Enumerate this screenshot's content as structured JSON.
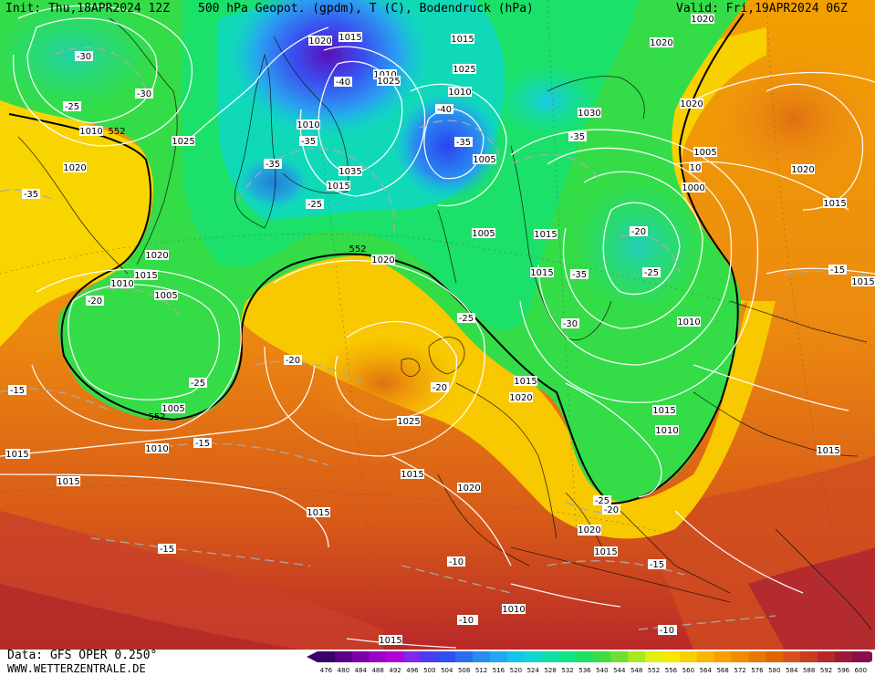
{
  "header": {
    "init": "Init: Thu,18APR2024 12Z",
    "title": "500 hPa Geopot. (gpdm), T (C), Bodendruck (hPa)",
    "valid": "Valid: Fri,19APR2024 06Z"
  },
  "footer": {
    "data_source": "Data: GFS OPER 0.250°",
    "website": "WWW.WETTERZENTRALE.DE"
  },
  "colorbar": {
    "ticks": [
      "476",
      "480",
      "484",
      "488",
      "492",
      "496",
      "500",
      "504",
      "508",
      "512",
      "516",
      "520",
      "524",
      "528",
      "532",
      "536",
      "540",
      "544",
      "548",
      "552",
      "556",
      "560",
      "564",
      "568",
      "572",
      "576",
      "580",
      "584",
      "588",
      "592",
      "596",
      "600"
    ],
    "colors": [
      "#3a006a",
      "#5a008a",
      "#7a00aa",
      "#9b00c8",
      "#b400d8",
      "#7c2ae8",
      "#4a3cf0",
      "#2e50f0",
      "#2a6ef0",
      "#2a8cf0",
      "#20a8f0",
      "#18c4e8",
      "#10d8d0",
      "#10e0a8",
      "#10e480",
      "#20e060",
      "#40dc40",
      "#6ce030",
      "#a8e820",
      "#e0f010",
      "#f8e800",
      "#f8d000",
      "#f8b800",
      "#f8a000",
      "#f08c00",
      "#e87800",
      "#e06400",
      "#d85020",
      "#c83c20",
      "#b82828",
      "#a01838",
      "#88104a"
    ]
  },
  "map_labels": {
    "isobars": [
      "1020",
      "1015",
      "1020",
      "1015",
      "1025",
      "1020",
      "1010",
      "1025",
      "1030",
      "1020",
      "1025",
      "1010",
      "1010",
      "1005",
      "1005",
      "1035",
      "1015",
      "1000",
      "1020",
      "1015",
      "1015",
      "1005",
      "1015",
      "1010",
      "1010",
      "1020",
      "1015",
      "1005",
      "1010",
      "1005",
      "1020",
      "1015",
      "1025",
      "1020",
      "1015",
      "1015",
      "1010",
      "1015",
      "1015",
      "1020",
      "1015",
      "1015",
      "1010",
      "1015",
      "1015",
      "10",
      "1010",
      "1020",
      "1015",
      "1015",
      "1010",
      "1015",
      "1020",
      "1015"
    ],
    "temperatures": [
      "-30",
      "-30",
      "-25",
      "-35",
      "-40",
      "-35",
      "-35",
      "-40",
      "-35",
      "-25",
      "-35",
      "-20",
      "-25",
      "-35",
      "-30",
      "-25",
      "-20",
      "-20",
      "-25",
      "-20",
      "-15",
      "-15",
      "-15",
      "-15",
      "-10",
      "-15",
      "-15",
      "-15",
      "-10",
      "-10",
      "-25",
      "-20"
    ],
    "geopotential": [
      "552",
      "552",
      "552"
    ]
  }
}
